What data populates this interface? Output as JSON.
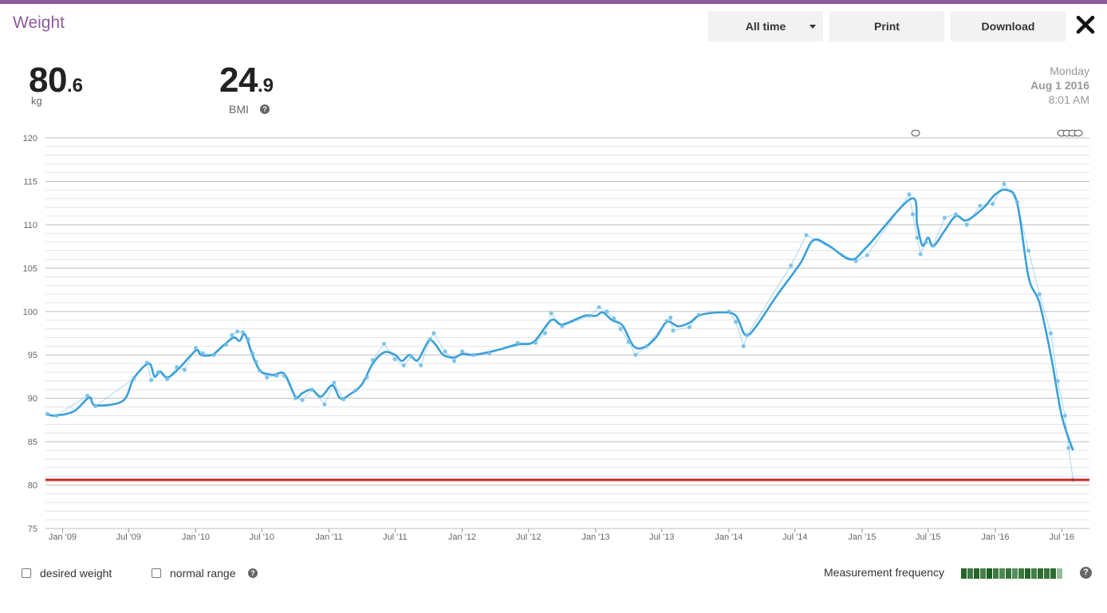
{
  "header": {
    "title": "Weight",
    "range_label": "All time",
    "print_label": "Print",
    "download_label": "Download"
  },
  "stats": {
    "weight_int": "80",
    "weight_dec": ".6",
    "weight_unit": "kg",
    "bmi_int": "24",
    "bmi_dec": ".9",
    "bmi_label": "BMI"
  },
  "date": {
    "weekday": "Monday",
    "date": "Aug 1 2016",
    "time": "8:01 AM"
  },
  "footer": {
    "desired_label": "desired weight",
    "normal_label": "normal range",
    "freq_label": "Measurement frequency",
    "freq_levels": [
      0.95,
      0.8,
      0.95,
      0.75,
      1.0,
      0.8,
      0.7,
      0.85,
      0.65,
      0.8,
      0.95,
      0.75,
      0.9,
      0.85,
      0.9,
      0.3
    ],
    "colors": {
      "freq_dark": "#1b5e20",
      "freq_light": "#c8e6c9"
    }
  },
  "chart_data": {
    "type": "line",
    "title": "",
    "xlabel": "",
    "ylabel": "",
    "ylim": [
      75,
      120
    ],
    "xlim": [
      "2008-11-15",
      "2016-09-15"
    ],
    "yticks": [
      75,
      80,
      85,
      90,
      95,
      100,
      105,
      110,
      115,
      120
    ],
    "minor_grid_step": 1,
    "xticks": [
      {
        "label": "Jan '09",
        "date": "2009-01-01"
      },
      {
        "label": "Jul '09",
        "date": "2009-07-01"
      },
      {
        "label": "Jan '10",
        "date": "2010-01-01"
      },
      {
        "label": "Jul '10",
        "date": "2010-07-01"
      },
      {
        "label": "Jan '11",
        "date": "2011-01-01"
      },
      {
        "label": "Jul '11",
        "date": "2011-07-01"
      },
      {
        "label": "Jan '12",
        "date": "2012-01-01"
      },
      {
        "label": "Jul '12",
        "date": "2012-07-01"
      },
      {
        "label": "Jan '13",
        "date": "2013-01-01"
      },
      {
        "label": "Jul '13",
        "date": "2013-07-01"
      },
      {
        "label": "Jan '14",
        "date": "2014-01-01"
      },
      {
        "label": "Jul '14",
        "date": "2014-07-01"
      },
      {
        "label": "Jan '15",
        "date": "2015-01-01"
      },
      {
        "label": "Jul '15",
        "date": "2015-07-01"
      },
      {
        "label": "Jan '16",
        "date": "2016-01-01"
      },
      {
        "label": "Jul '16",
        "date": "2016-07-01"
      }
    ],
    "reference_line": {
      "value": 80.6,
      "color": "#c62828"
    },
    "series": [
      {
        "color": "#3a9fd8",
        "points": [
          [
            "2008-11-20",
            88.2
          ],
          [
            "2008-12-10",
            88.0
          ],
          [
            "2009-02-01",
            88.5
          ],
          [
            "2009-03-15",
            90.1
          ],
          [
            "2009-04-01",
            89.2
          ],
          [
            "2009-06-15",
            89.7
          ],
          [
            "2009-07-15",
            92.3
          ],
          [
            "2009-08-25",
            94.0
          ],
          [
            "2009-09-10",
            92.5
          ],
          [
            "2009-09-25",
            93.1
          ],
          [
            "2009-10-15",
            92.4
          ],
          [
            "2009-11-15",
            93.4
          ],
          [
            "2010-01-01",
            95.5
          ],
          [
            "2010-01-15",
            95.0
          ],
          [
            "2010-02-15",
            95.0
          ],
          [
            "2010-03-15",
            96.0
          ],
          [
            "2010-04-15",
            97.0
          ],
          [
            "2010-05-01",
            96.6
          ],
          [
            "2010-05-15",
            97.4
          ],
          [
            "2010-06-01",
            95.5
          ],
          [
            "2010-06-15",
            94.0
          ],
          [
            "2010-07-01",
            93.0
          ],
          [
            "2010-08-01",
            92.7
          ],
          [
            "2010-09-01",
            92.8
          ],
          [
            "2010-10-01",
            90.2
          ],
          [
            "2010-10-20",
            90.6
          ],
          [
            "2010-11-15",
            91.0
          ],
          [
            "2010-12-10",
            90.2
          ],
          [
            "2011-01-10",
            91.5
          ],
          [
            "2011-02-01",
            90.0
          ],
          [
            "2011-03-01",
            90.5
          ],
          [
            "2011-04-01",
            91.6
          ],
          [
            "2011-05-01",
            94.0
          ],
          [
            "2011-06-01",
            95.3
          ],
          [
            "2011-07-01",
            95.0
          ],
          [
            "2011-07-20",
            94.3
          ],
          [
            "2011-08-10",
            95.0
          ],
          [
            "2011-09-01",
            94.4
          ],
          [
            "2011-10-01",
            96.6
          ],
          [
            "2011-10-20",
            96.2
          ],
          [
            "2011-11-10",
            95.0
          ],
          [
            "2011-12-10",
            94.7
          ],
          [
            "2012-01-01",
            95.1
          ],
          [
            "2012-02-01",
            95.0
          ],
          [
            "2012-04-01",
            95.5
          ],
          [
            "2012-06-01",
            96.2
          ],
          [
            "2012-07-15",
            96.5
          ],
          [
            "2012-09-01",
            99.0
          ],
          [
            "2012-10-01",
            98.5
          ],
          [
            "2012-12-01",
            99.5
          ],
          [
            "2013-01-01",
            99.5
          ],
          [
            "2013-01-20",
            99.9
          ],
          [
            "2013-02-15",
            99.0
          ],
          [
            "2013-03-15",
            98.4
          ],
          [
            "2013-04-15",
            96.0
          ],
          [
            "2013-05-15",
            95.9
          ],
          [
            "2013-06-15",
            97.0
          ],
          [
            "2013-07-15",
            98.8
          ],
          [
            "2013-08-15",
            98.3
          ],
          [
            "2013-09-15",
            98.7
          ],
          [
            "2013-10-15",
            99.6
          ],
          [
            "2013-12-15",
            99.9
          ],
          [
            "2014-01-20",
            99.5
          ],
          [
            "2014-02-15",
            97.3
          ],
          [
            "2014-03-15",
            98.2
          ],
          [
            "2014-05-15",
            102.0
          ],
          [
            "2014-07-15",
            105.5
          ],
          [
            "2014-08-20",
            108.2
          ],
          [
            "2014-10-01",
            107.6
          ],
          [
            "2014-12-01",
            106.0
          ],
          [
            "2015-01-15",
            107.5
          ],
          [
            "2015-05-15",
            113.0
          ],
          [
            "2015-06-01",
            110.0
          ],
          [
            "2015-06-15",
            107.6
          ],
          [
            "2015-07-01",
            108.5
          ],
          [
            "2015-07-15",
            107.5
          ],
          [
            "2015-08-15",
            109.3
          ],
          [
            "2015-09-15",
            111.0
          ],
          [
            "2015-10-15",
            110.5
          ],
          [
            "2015-12-01",
            112.0
          ],
          [
            "2016-01-01",
            113.5
          ],
          [
            "2016-02-01",
            114.0
          ],
          [
            "2016-03-01",
            112.5
          ],
          [
            "2016-04-01",
            104.0
          ],
          [
            "2016-05-01",
            101.0
          ],
          [
            "2016-06-01",
            95.0
          ],
          [
            "2016-07-01",
            88.0
          ],
          [
            "2016-08-01",
            84.0
          ]
        ]
      },
      {
        "color": "#6fbde8",
        "points": [
          [
            "2008-11-20",
            88.2
          ],
          [
            "2008-12-15",
            88.0
          ],
          [
            "2009-03-10",
            90.3
          ],
          [
            "2009-04-01",
            89.1
          ],
          [
            "2009-07-15",
            92.3
          ],
          [
            "2009-08-20",
            94.1
          ],
          [
            "2009-09-01",
            92.1
          ],
          [
            "2009-09-20",
            93.0
          ],
          [
            "2009-10-15",
            92.2
          ],
          [
            "2009-11-10",
            93.6
          ],
          [
            "2009-12-01",
            93.3
          ],
          [
            "2010-01-01",
            95.8
          ],
          [
            "2010-01-20",
            95.2
          ],
          [
            "2010-02-20",
            95.0
          ],
          [
            "2010-03-25",
            96.2
          ],
          [
            "2010-04-10",
            97.3
          ],
          [
            "2010-04-25",
            97.7
          ],
          [
            "2010-05-10",
            97.6
          ],
          [
            "2010-05-25",
            96.8
          ],
          [
            "2010-06-05",
            95.2
          ],
          [
            "2010-06-15",
            94.2
          ],
          [
            "2010-06-25",
            93.2
          ],
          [
            "2010-07-15",
            92.4
          ],
          [
            "2010-08-10",
            92.6
          ],
          [
            "2010-09-01",
            92.6
          ],
          [
            "2010-10-01",
            90.0
          ],
          [
            "2010-10-20",
            89.8
          ],
          [
            "2010-11-15",
            91.0
          ],
          [
            "2010-12-20",
            89.3
          ],
          [
            "2011-01-15",
            91.8
          ],
          [
            "2011-02-10",
            89.9
          ],
          [
            "2011-03-15",
            90.9
          ],
          [
            "2011-04-15",
            92.4
          ],
          [
            "2011-05-01",
            94.4
          ],
          [
            "2011-06-01",
            96.3
          ],
          [
            "2011-07-01",
            94.5
          ],
          [
            "2011-07-25",
            93.8
          ],
          [
            "2011-08-15",
            94.8
          ],
          [
            "2011-09-10",
            93.8
          ],
          [
            "2011-10-05",
            96.8
          ],
          [
            "2011-10-15",
            97.5
          ],
          [
            "2011-11-15",
            95.4
          ],
          [
            "2011-12-10",
            94.3
          ],
          [
            "2012-01-01",
            95.4
          ],
          [
            "2012-02-01",
            95.0
          ],
          [
            "2012-03-15",
            95.2
          ],
          [
            "2012-06-01",
            96.4
          ],
          [
            "2012-07-20",
            96.4
          ],
          [
            "2012-08-15",
            97.5
          ],
          [
            "2012-09-01",
            99.8
          ],
          [
            "2012-10-01",
            98.3
          ],
          [
            "2012-12-15",
            99.5
          ],
          [
            "2013-01-10",
            100.5
          ],
          [
            "2013-02-01",
            100.0
          ],
          [
            "2013-02-20",
            99.2
          ],
          [
            "2013-03-10",
            98.0
          ],
          [
            "2013-04-01",
            96.5
          ],
          [
            "2013-04-20",
            95.0
          ],
          [
            "2013-05-20",
            96.0
          ],
          [
            "2013-07-15",
            98.9
          ],
          [
            "2013-07-25",
            99.3
          ],
          [
            "2013-08-01",
            97.8
          ],
          [
            "2013-09-15",
            98.2
          ],
          [
            "2013-10-10",
            99.6
          ],
          [
            "2014-01-01",
            100.0
          ],
          [
            "2014-01-20",
            98.8
          ],
          [
            "2014-02-10",
            96.0
          ],
          [
            "2014-02-20",
            97.3
          ],
          [
            "2014-06-20",
            105.3
          ],
          [
            "2014-08-01",
            108.8
          ],
          [
            "2014-12-15",
            105.8
          ],
          [
            "2015-01-15",
            106.5
          ],
          [
            "2015-05-10",
            113.5
          ],
          [
            "2015-05-20",
            111.2
          ],
          [
            "2015-06-01",
            108.5
          ],
          [
            "2015-06-10",
            106.6
          ],
          [
            "2015-06-25",
            108.0
          ],
          [
            "2015-07-15",
            107.6
          ],
          [
            "2015-08-15",
            110.8
          ],
          [
            "2015-09-15",
            111.2
          ],
          [
            "2015-10-15",
            110.0
          ],
          [
            "2015-11-20",
            112.2
          ],
          [
            "2015-12-25",
            112.4
          ],
          [
            "2016-01-25",
            114.7
          ],
          [
            "2016-03-01",
            112.6
          ],
          [
            "2016-04-01",
            107.0
          ],
          [
            "2016-05-01",
            102.0
          ],
          [
            "2016-06-01",
            97.5
          ],
          [
            "2016-06-20",
            92.0
          ],
          [
            "2016-07-10",
            88.0
          ],
          [
            "2016-07-20",
            84.3
          ],
          [
            "2016-08-01",
            80.6
          ]
        ]
      }
    ]
  }
}
